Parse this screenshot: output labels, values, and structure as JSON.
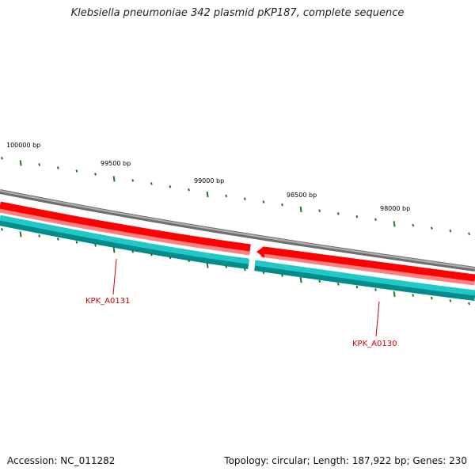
{
  "title": "Klebsiella pneumoniae 342 plasmid pKP187, complete sequence",
  "accession": "Accession: NC_011282",
  "summary": "Topology: circular; Length: 187,922 bp; Genes: 230",
  "colors": {
    "backbone": "#8a8a8a",
    "forward_gene": "#ff0000",
    "forward_gene_shade": "#ff8080",
    "reverse_gene": "#20c8c8",
    "reverse_gene_shade": "#008c8c",
    "tick": "#1e7a1e",
    "label_text": "#000000",
    "gene_label": "#cc0000"
  },
  "ruler": {
    "labels": [
      "100000 bp",
      "99500 bp",
      "99000 bp",
      "98500 bp",
      "98000 bp"
    ]
  },
  "genes": [
    {
      "name": "KPK_A0131",
      "strand": "reverse"
    },
    {
      "name": "KPK_A0130",
      "strand": "forward"
    }
  ]
}
